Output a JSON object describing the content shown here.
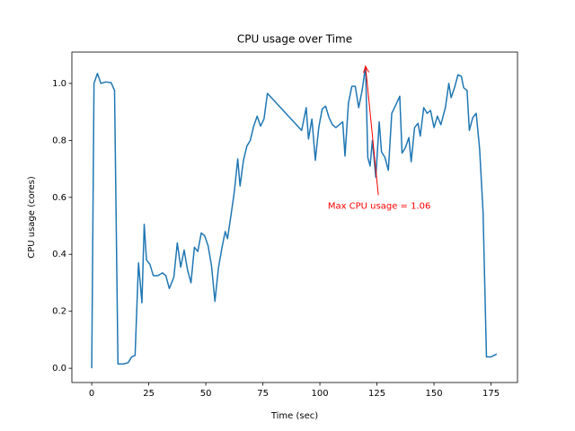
{
  "chart_data": {
    "type": "line",
    "title": "CPU usage over Time",
    "x_label": "Time (sec)",
    "y_label": "CPU usage (cores)",
    "color": "#1f77b4",
    "x": [
      0,
      1,
      2.5,
      4,
      6,
      8.5,
      10,
      11.5,
      14,
      16,
      17.5,
      19,
      20.5,
      22,
      23,
      24,
      25.5,
      27,
      29,
      31,
      32.5,
      34,
      36,
      37.5,
      39,
      40.5,
      42,
      43.5,
      45,
      46.5,
      48,
      49.5,
      51,
      52.5,
      54,
      55.5,
      57,
      58.5,
      59.5,
      61,
      62.5,
      64,
      65,
      66.5,
      68,
      69.5,
      71,
      72.5,
      74,
      75.5,
      77,
      92,
      94,
      95,
      96.5,
      98,
      99.5,
      101,
      102.5,
      104,
      105.5,
      107,
      108.5,
      110,
      111,
      112.5,
      114,
      115.5,
      117,
      118.5,
      120,
      121,
      122,
      123,
      124.5,
      126,
      127,
      128.5,
      130,
      131.5,
      133,
      135,
      136,
      137.5,
      139,
      140,
      141.5,
      143,
      144,
      145.5,
      147,
      148.5,
      150,
      151.5,
      153,
      155,
      156.5,
      157.5,
      159,
      160.5,
      162,
      163,
      164.5,
      165.5,
      167,
      168.5,
      170,
      171.5,
      173,
      175,
      177.5
    ],
    "values": [
      0.0,
      1.0,
      1.035,
      1.0,
      1.005,
      1.003,
      0.975,
      0.015,
      0.015,
      0.02,
      0.04,
      0.045,
      0.37,
      0.23,
      0.505,
      0.38,
      0.365,
      0.325,
      0.325,
      0.335,
      0.325,
      0.28,
      0.32,
      0.44,
      0.355,
      0.415,
      0.345,
      0.3,
      0.425,
      0.41,
      0.475,
      0.465,
      0.43,
      0.36,
      0.235,
      0.35,
      0.42,
      0.48,
      0.455,
      0.535,
      0.62,
      0.735,
      0.64,
      0.73,
      0.78,
      0.8,
      0.85,
      0.885,
      0.85,
      0.875,
      0.965,
      0.835,
      0.915,
      0.805,
      0.875,
      0.73,
      0.845,
      0.91,
      0.92,
      0.88,
      0.855,
      0.845,
      0.855,
      0.865,
      0.745,
      0.93,
      0.99,
      0.99,
      0.915,
      0.975,
      1.06,
      0.74,
      0.71,
      0.8,
      0.67,
      0.865,
      0.76,
      0.74,
      0.695,
      0.895,
      0.92,
      0.955,
      0.755,
      0.775,
      0.81,
      0.725,
      0.845,
      0.86,
      0.815,
      0.915,
      0.895,
      0.905,
      0.845,
      0.885,
      0.855,
      0.915,
      1.0,
      0.95,
      0.985,
      1.03,
      1.025,
      0.985,
      0.975,
      0.835,
      0.88,
      0.895,
      0.77,
      0.55,
      0.04,
      0.04,
      0.05
    ],
    "xlim": [
      -8.7,
      186.6
    ],
    "ylim": [
      -0.05,
      1.11
    ],
    "xticks": [
      0,
      25,
      50,
      75,
      100,
      125,
      150,
      175
    ],
    "yticks": [
      {
        "value": 0,
        "label": "0.0"
      },
      0.2,
      0.4,
      0.6,
      0.8,
      {
        "value": 1,
        "label": "1.0"
      }
    ],
    "annotation": {
      "text": "Max CPU usage = 1.06",
      "xy": [
        120,
        1.06
      ],
      "xytext": [
        126,
        0.57
      ],
      "color": "red"
    }
  }
}
